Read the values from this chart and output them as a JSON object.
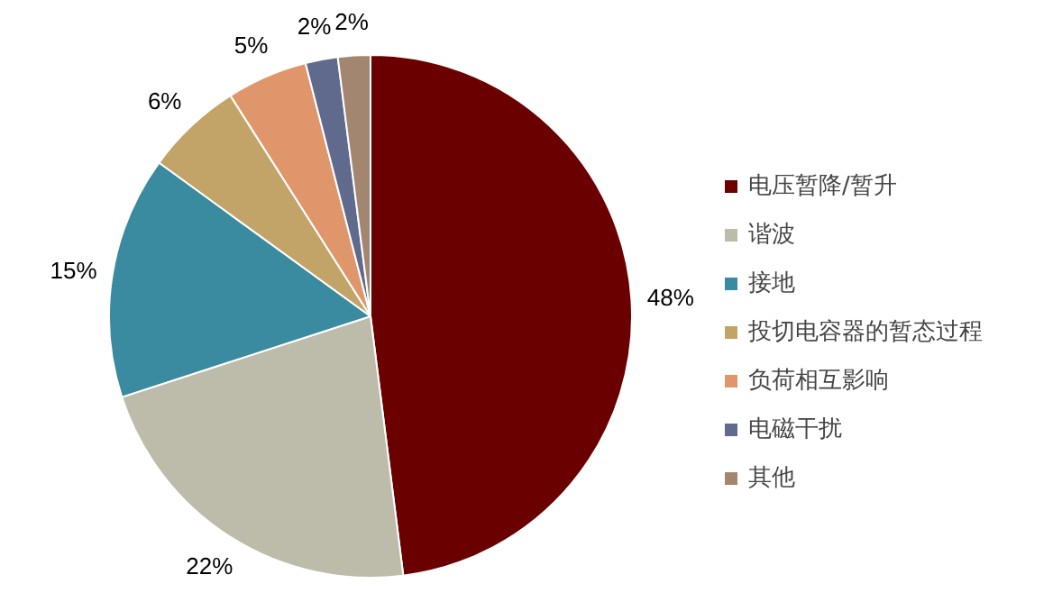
{
  "chart_data": {
    "type": "pie",
    "categories": [
      "电压暂降/暂升",
      "谐波",
      "接地",
      "投切电容器的暂态过程",
      "负荷相互影响",
      "电磁干扰",
      "其他"
    ],
    "values": [
      48,
      22,
      15,
      6,
      5,
      2,
      2
    ],
    "colors": [
      "#6b0000",
      "#bdbba9",
      "#3a8b9f",
      "#c2a468",
      "#e0966b",
      "#5f6a8c",
      "#a28670"
    ],
    "value_labels": [
      "48%",
      "22%",
      "15%",
      "6%",
      "5%",
      "2%",
      "2%"
    ],
    "legend": "right"
  }
}
